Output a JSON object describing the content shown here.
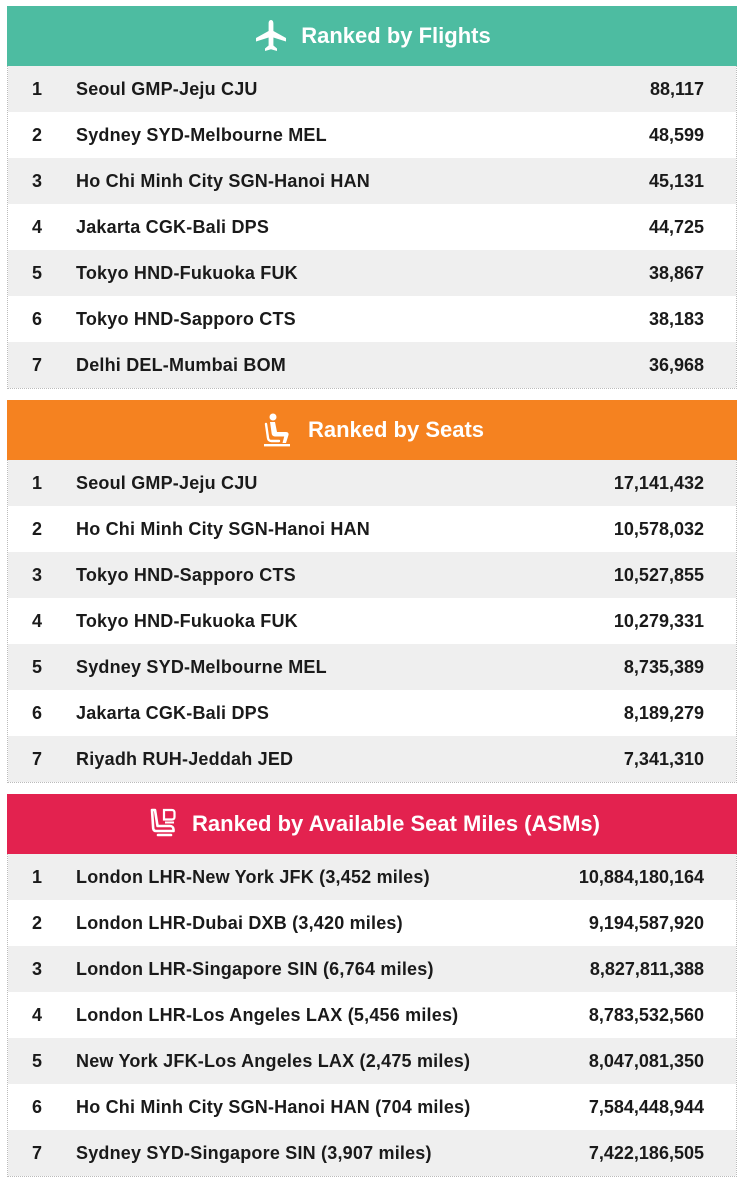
{
  "flights": {
    "title": "Ranked by Flights",
    "icon": "airplane-icon",
    "color": "#4dbca1",
    "rows": [
      {
        "rank": "1",
        "route": "Seoul GMP-Jeju CJU",
        "value": "88,117"
      },
      {
        "rank": "2",
        "route": "Sydney SYD-Melbourne MEL",
        "value": "48,599"
      },
      {
        "rank": "3",
        "route": "Ho Chi Minh City SGN-Hanoi HAN",
        "value": "45,131"
      },
      {
        "rank": "4",
        "route": "Jakarta CGK-Bali DPS",
        "value": "44,725"
      },
      {
        "rank": "5",
        "route": "Tokyo HND-Fukuoka FUK",
        "value": "38,867"
      },
      {
        "rank": "6",
        "route": "Tokyo HND-Sapporo CTS",
        "value": "38,183"
      },
      {
        "rank": "7",
        "route": "Delhi DEL-Mumbai BOM",
        "value": "36,968"
      }
    ]
  },
  "seats": {
    "title": "Ranked by Seats",
    "icon": "seated-person-icon",
    "color": "#f58220",
    "rows": [
      {
        "rank": "1",
        "route": "Seoul GMP-Jeju CJU",
        "value": "17,141,432"
      },
      {
        "rank": "2",
        "route": "Ho Chi Minh City SGN-Hanoi HAN",
        "value": "10,578,032"
      },
      {
        "rank": "3",
        "route": "Tokyo HND-Sapporo CTS",
        "value": "10,527,855"
      },
      {
        "rank": "4",
        "route": "Tokyo HND-Fukuoka FUK",
        "value": "10,279,331"
      },
      {
        "rank": "5",
        "route": "Sydney SYD-Melbourne MEL",
        "value": "8,735,389"
      },
      {
        "rank": "6",
        "route": "Jakarta CGK-Bali DPS",
        "value": "8,189,279"
      },
      {
        "rank": "7",
        "route": "Riyadh RUH-Jeddah JED",
        "value": "7,341,310"
      }
    ]
  },
  "asms": {
    "title": "Ranked by Available Seat Miles (ASMs)",
    "icon": "airline-seat-icon",
    "color": "#e3224f",
    "rows": [
      {
        "rank": "1",
        "route": "London LHR-New York JFK (3,452 miles)",
        "value": "10,884,180,164"
      },
      {
        "rank": "2",
        "route": "London LHR-Dubai DXB (3,420 miles)",
        "value": "9,194,587,920"
      },
      {
        "rank": "3",
        "route": "London LHR-Singapore SIN (6,764 miles)",
        "value": "8,827,811,388"
      },
      {
        "rank": "4",
        "route": "London LHR-Los Angeles LAX (5,456 miles)",
        "value": "8,783,532,560"
      },
      {
        "rank": "5",
        "route": "New York JFK-Los Angeles LAX (2,475 miles)",
        "value": "8,047,081,350"
      },
      {
        "rank": "6",
        "route": "Ho Chi Minh City SGN-Hanoi HAN (704 miles)",
        "value": "7,584,448,944"
      },
      {
        "rank": "7",
        "route": "Sydney SYD-Singapore SIN (3,907 miles)",
        "value": "7,422,186,505"
      }
    ]
  }
}
